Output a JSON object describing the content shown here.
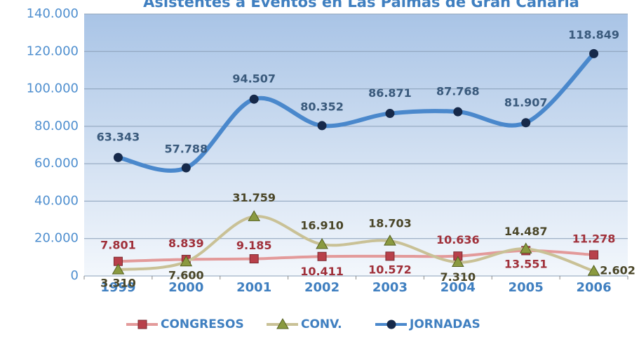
{
  "chart_data": {
    "type": "line",
    "title": "Asistentes a Eventos en Las Palmas de Gran Canaria",
    "categories": [
      "1999",
      "2000",
      "2001",
      "2002",
      "2003",
      "2004",
      "2005",
      "2006"
    ],
    "series": [
      {
        "name": "CONGRESOS",
        "color": "#e39a9a",
        "marker_color": "#b8404a",
        "label_color": "#a0303a",
        "marker": "square",
        "values": [
          7801,
          8839,
          9185,
          10411,
          10572,
          10636,
          13551,
          11278
        ],
        "value_labels": [
          "7.801",
          "8.839",
          "9.185",
          "10.411",
          "10.572",
          "10.636",
          "13.551",
          "11.278"
        ]
      },
      {
        "name": "CONV.",
        "color": "#c9c196",
        "marker_color": "#8a9a40",
        "label_color": "#4a4628",
        "marker": "triangle",
        "values": [
          3310,
          7600,
          31759,
          16910,
          18703,
          7310,
          14487,
          2602
        ],
        "value_labels": [
          "3.310",
          "7.600",
          "31.759",
          "16.910",
          "18.703",
          "7.310",
          "14.487",
          "2.602"
        ]
      },
      {
        "name": "JORNADAS",
        "color": "#4a88cc",
        "marker_color": "#16294a",
        "label_color": "#3a5a7c",
        "marker": "circle",
        "values": [
          63343,
          57788,
          94507,
          80352,
          86871,
          87768,
          81907,
          118849
        ],
        "value_labels": [
          "63.343",
          "57.788",
          "94.507",
          "80.352",
          "86.871",
          "87.768",
          "81.907",
          "118.849"
        ]
      }
    ],
    "ylim": [
      0,
      140000
    ],
    "yticks": [
      0,
      {
        "value": 20000,
        "label": "20.000"
      },
      {
        "value": 40000,
        "label": "40.000"
      },
      {
        "value": 60000,
        "label": "60.000"
      },
      {
        "value": 80000,
        "label": "80.000"
      },
      {
        "value": 100000,
        "label": "100.000"
      },
      {
        "value": 120000,
        "label": "120.000"
      },
      {
        "value": 140000,
        "label": "140.000"
      }
    ],
    "grid": true
  }
}
